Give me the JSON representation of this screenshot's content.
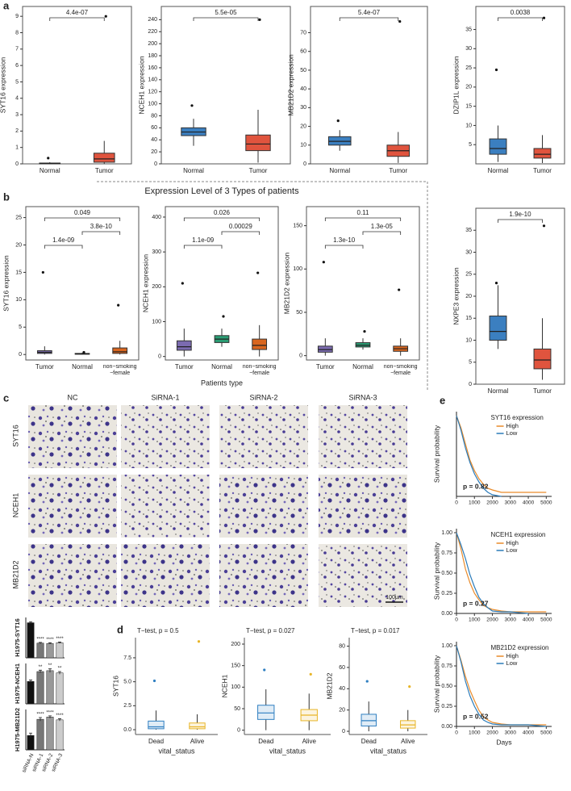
{
  "image_grid": {
    "panel": "c",
    "columns": [
      "NC",
      "SiRNA-1",
      "SiRNA-2",
      "SiRNA-3"
    ],
    "rows": [
      "SYT16",
      "NCEH1",
      "MB21D2"
    ],
    "scale_bar": "100μm"
  },
  "chart_data": [
    {
      "type": "box",
      "panel": "a",
      "ylabel": "SYT16 expression",
      "categories": [
        "Normal",
        "Tumor"
      ],
      "colors": [
        "#3b7fc0",
        "#e0543e"
      ],
      "whisker_low": [
        0,
        0
      ],
      "q1": [
        0,
        0.1
      ],
      "median": [
        0.02,
        0.3
      ],
      "q3": [
        0.05,
        0.65
      ],
      "whisker_high": [
        0.1,
        1.4
      ],
      "max": [
        0.35,
        9.0
      ],
      "ylim": [
        0,
        9.6
      ],
      "yticks": [
        0,
        1,
        2,
        3,
        4,
        5,
        6,
        7,
        8,
        9
      ],
      "comparisons": [
        {
          "from": "Normal",
          "to": "Tumor",
          "label": "4.4e-07"
        }
      ]
    },
    {
      "type": "box",
      "ylabel": "NCEH1 expression",
      "categories": [
        "Normal",
        "Tumor"
      ],
      "colors": [
        "#3b7fc0",
        "#e0543e"
      ],
      "whisker_low": [
        30,
        2
      ],
      "q1": [
        47,
        22
      ],
      "median": [
        53,
        33
      ],
      "q3": [
        60,
        48
      ],
      "whisker_high": [
        75,
        90
      ],
      "max": [
        97,
        240
      ],
      "ylim": [
        0,
        262
      ],
      "yticks": [
        0,
        20,
        40,
        60,
        80,
        100,
        120,
        140,
        160,
        180,
        200,
        220,
        240
      ],
      "comparisons": [
        {
          "from": "Normal",
          "to": "Tumor",
          "label": "5.5e-05"
        }
      ]
    },
    {
      "type": "box",
      "ylabel": "MB21D2 expression",
      "categories": [
        "Normal",
        "Tumor"
      ],
      "colors": [
        "#3b7fc0",
        "#e0543e"
      ],
      "whisker_low": [
        7,
        0.5
      ],
      "q1": [
        10,
        4
      ],
      "median": [
        12,
        7
      ],
      "q3": [
        14.5,
        10
      ],
      "whisker_high": [
        18,
        17
      ],
      "max": [
        23,
        76
      ],
      "ylim": [
        0,
        84
      ],
      "yticks": [
        0,
        10,
        20,
        30,
        40,
        50,
        60,
        70
      ],
      "comparisons": [
        {
          "from": "Normal",
          "to": "Tumor",
          "label": "5.4e-07"
        }
      ]
    },
    {
      "type": "box",
      "ylabel": "DZIP1L expression",
      "categories": [
        "Normal",
        "Tumor"
      ],
      "colors": [
        "#3b7fc0",
        "#e0543e"
      ],
      "whisker_low": [
        0.5,
        0.2
      ],
      "q1": [
        2.5,
        1.5
      ],
      "median": [
        4,
        2.5
      ],
      "q3": [
        6.5,
        4
      ],
      "whisker_high": [
        10,
        7.5
      ],
      "max": [
        24.5,
        38
      ],
      "ylim": [
        0,
        41
      ],
      "yticks": [
        5,
        10,
        15,
        20,
        25,
        30,
        35
      ],
      "comparisons": [
        {
          "from": "Normal",
          "to": "Tumor",
          "label": "0.0038"
        }
      ]
    },
    {
      "type": "box",
      "ylabel": "NXPE3 expression",
      "categories": [
        "Normal",
        "Tumor"
      ],
      "colors": [
        "#3b7fc0",
        "#e0543e"
      ],
      "whisker_low": [
        8,
        1
      ],
      "q1": [
        10,
        3.5
      ],
      "median": [
        12,
        5.5
      ],
      "q3": [
        15.5,
        8
      ],
      "whisker_high": [
        22.5,
        15
      ],
      "max": [
        23,
        36
      ],
      "ylim": [
        0,
        40
      ],
      "yticks": [
        0,
        5,
        10,
        15,
        20,
        25,
        30,
        35
      ],
      "comparisons": [
        {
          "from": "Normal",
          "to": "Tumor",
          "label": "1.9e-10"
        }
      ]
    },
    {
      "type": "box",
      "panel": "b",
      "ylabel": "SYT16 expression",
      "categories": [
        "Tumor",
        "Normal",
        "non−smoking\n−female"
      ],
      "colors": [
        "#7b6bb0",
        "#2a9d74",
        "#d9661f"
      ],
      "whisker_low": [
        0,
        0,
        0
      ],
      "q1": [
        0.2,
        0.05,
        0.2
      ],
      "median": [
        0.4,
        0.1,
        0.5
      ],
      "q3": [
        0.7,
        0.2,
        1.2
      ],
      "whisker_high": [
        1.5,
        0.35,
        2.5
      ],
      "max": [
        15,
        0.4,
        9
      ],
      "ylim": [
        -1,
        27
      ],
      "yticks": [
        0,
        5,
        10,
        15,
        20,
        25
      ],
      "comparisons": [
        {
          "from": "Tumor",
          "to": "non−smoking\n−female",
          "label": "0.049"
        },
        {
          "from": "Normal",
          "to": "non−smoking\n−female",
          "label": "3.8e-10"
        },
        {
          "from": "Tumor",
          "to": "Normal",
          "label": "1.4e-09"
        }
      ]
    },
    {
      "type": "box",
      "title": "Expression Level of 3 Types of patients",
      "xlabel": "Patients type",
      "ylabel": "NCEH1 expression",
      "categories": [
        "Tumor",
        "Normal",
        "non−smoking\n−female"
      ],
      "colors": [
        "#7b6bb0",
        "#2a9d74",
        "#d9661f"
      ],
      "whisker_low": [
        0,
        28,
        0
      ],
      "q1": [
        18,
        40,
        20
      ],
      "median": [
        28,
        50,
        32
      ],
      "q3": [
        45,
        60,
        50
      ],
      "whisker_high": [
        80,
        80,
        90
      ],
      "max": [
        210,
        115,
        240
      ],
      "ylim": [
        -10,
        430
      ],
      "yticks": [
        0,
        100,
        200,
        300,
        400
      ],
      "comparisons": [
        {
          "from": "Tumor",
          "to": "non−smoking\n−female",
          "label": "0.026"
        },
        {
          "from": "Normal",
          "to": "non−smoking\n−female",
          "label": "0.00029"
        },
        {
          "from": "Tumor",
          "to": "Normal",
          "label": "1.1e-09"
        }
      ]
    },
    {
      "type": "box",
      "ylabel": "MB21D2 expression",
      "categories": [
        "Tumor",
        "Normal",
        "non−smoking\n−female"
      ],
      "colors": [
        "#7b6bb0",
        "#2a9d74",
        "#d9661f"
      ],
      "whisker_low": [
        0,
        7,
        0
      ],
      "q1": [
        4,
        10,
        5
      ],
      "median": [
        7,
        12,
        8
      ],
      "q3": [
        11,
        15,
        11
      ],
      "whisker_high": [
        20,
        20,
        20
      ],
      "max": [
        108,
        28,
        76
      ],
      "ylim": [
        -5,
        172
      ],
      "yticks": [
        0,
        50,
        100,
        150
      ],
      "comparisons": [
        {
          "from": "Tumor",
          "to": "non−smoking\n−female",
          "label": "0.11"
        },
        {
          "from": "Normal",
          "to": "non−smoking\n−female",
          "label": "1.3e-05"
        },
        {
          "from": "Tumor",
          "to": "Normal",
          "label": "1.3e-10"
        }
      ]
    },
    {
      "type": "bar",
      "ylabel": "H1975-SYT16",
      "values": [
        100,
        42,
        41,
        43
      ],
      "errors": [
        3,
        2,
        2,
        2
      ],
      "annotations": [
        null,
        "****",
        "****",
        "****"
      ],
      "colors": [
        "#111111",
        "#777777",
        "#999999",
        "#cccccc"
      ],
      "ylim": [
        0,
        115
      ]
    },
    {
      "type": "bar",
      "ylabel": "H1975-NCEH1",
      "values": [
        50,
        72,
        74,
        69
      ],
      "errors": [
        3,
        3,
        4,
        3
      ],
      "annotations": [
        null,
        "**",
        "**",
        "**"
      ],
      "colors": [
        "#111111",
        "#777777",
        "#999999",
        "#cccccc"
      ],
      "ylim": [
        0,
        90
      ]
    },
    {
      "type": "bar",
      "ylabel": "H1975-MB21D2",
      "categories": [
        "siRNA-N",
        "siRNA-1",
        "siRNA-2",
        "siRNA-3"
      ],
      "values": [
        25,
        53,
        57,
        52
      ],
      "errors": [
        4,
        3,
        2,
        2
      ],
      "annotations": [
        null,
        "****",
        "****",
        "****"
      ],
      "colors": [
        "#111111",
        "#777777",
        "#999999",
        "#cccccc"
      ],
      "ylim": [
        0,
        70
      ]
    },
    {
      "type": "box",
      "panel": "d",
      "title": "T−test, p = 0.5",
      "ylabel": "SYT16",
      "xlabel": "vital_status",
      "categories": [
        "Dead",
        "Alive"
      ],
      "colors": [
        "#2f7fc1",
        "#e8b527"
      ],
      "whisker_low": [
        0,
        0
      ],
      "q1": [
        0.1,
        0.1
      ],
      "median": [
        0.3,
        0.3
      ],
      "q3": [
        0.9,
        0.7
      ],
      "whisker_high": [
        2,
        1.6
      ],
      "max": [
        5.1,
        9.2
      ],
      "ylim": [
        -0.5,
        9.6
      ],
      "yticks": [
        {
          "value": 0,
          "label": "0.0"
        },
        2.5,
        {
          "value": 5,
          "label": "5.0"
        },
        7.5
      ]
    },
    {
      "type": "box",
      "title": "T−test, p = 0.027",
      "ylabel": "NCEH1",
      "xlabel": "vital_status",
      "categories": [
        "Dead",
        "Alive"
      ],
      "colors": [
        "#2f7fc1",
        "#e8b527"
      ],
      "whisker_low": [
        0,
        0
      ],
      "q1": [
        25,
        22
      ],
      "median": [
        40,
        35
      ],
      "q3": [
        58,
        48
      ],
      "whisker_high": [
        95,
        85
      ],
      "max": [
        140,
        130
      ],
      "ylim": [
        -10,
        215
      ],
      "yticks": [
        0,
        50,
        100,
        150,
        200
      ]
    },
    {
      "type": "box",
      "title": "T−test, p = 0.017",
      "ylabel": "MB21D2",
      "xlabel": "vital_status",
      "categories": [
        "Dead",
        "Alive"
      ],
      "colors": [
        "#2f7fc1",
        "#e8b527"
      ],
      "whisker_low": [
        0,
        0
      ],
      "q1": [
        5,
        3
      ],
      "median": [
        10,
        6
      ],
      "q3": [
        16,
        10
      ],
      "whisker_high": [
        28,
        20
      ],
      "max": [
        47,
        42
      ],
      "ylim": [
        -3,
        88
      ],
      "yticks": [
        0,
        20,
        40,
        60,
        80
      ]
    },
    {
      "type": "km",
      "panel": "e",
      "title": "SYT16 expression",
      "ylabel": "Survival probability",
      "annotation": "p = 0.82",
      "x": [
        0,
        250,
        500,
        750,
        1000,
        1250,
        1500,
        1750,
        2000,
        2500,
        3000,
        4000,
        5000
      ],
      "series": [
        {
          "name": "High",
          "color": "#e98b2a",
          "values": [
            1,
            0.85,
            0.65,
            0.45,
            0.32,
            0.22,
            0.15,
            0.1,
            0.08,
            0.05,
            0.05,
            0.05,
            0.05
          ]
        },
        {
          "name": "Low",
          "color": "#2b7bb9",
          "values": [
            1,
            0.82,
            0.6,
            0.42,
            0.28,
            0.18,
            0.1,
            0.05,
            0.02,
            0,
            null,
            null,
            null
          ]
        }
      ],
      "xlim": [
        0,
        5300
      ],
      "ylim": [
        0,
        1.05
      ],
      "xticks": [
        0,
        1000,
        2000,
        3000,
        4000,
        5000
      ]
    },
    {
      "type": "km",
      "title": "NCEH1 expression",
      "ylabel": "Survival probability",
      "annotation": "p = 0.27",
      "x": [
        0,
        250,
        500,
        750,
        1000,
        1250,
        1500,
        1750,
        2000,
        2500,
        3000,
        4000,
        5000
      ],
      "series": [
        {
          "name": "High",
          "color": "#e98b2a",
          "values": [
            1,
            0.8,
            0.55,
            0.38,
            0.25,
            0.17,
            0.1,
            0.07,
            0.05,
            0.03,
            0.02,
            0.02,
            0.02
          ]
        },
        {
          "name": "Low",
          "color": "#2b7bb9",
          "values": [
            1,
            0.85,
            0.68,
            0.48,
            0.33,
            0.2,
            0.12,
            0.07,
            0.03,
            0.02,
            0.02,
            0,
            null
          ]
        }
      ],
      "xlim": [
        0,
        5300
      ],
      "ylim": [
        0,
        1.05
      ],
      "xticks": [
        0,
        1000,
        2000,
        3000,
        4000,
        5000
      ],
      "yticks": [
        {
          "value": 0,
          "label": "0.00"
        },
        0.25,
        {
          "value": 0.5,
          "label": "0.50"
        },
        0.75,
        {
          "value": 1,
          "label": "1.00"
        }
      ]
    },
    {
      "type": "km",
      "title": "MB21D2 expression",
      "ylabel": "Survival probability",
      "xlabel": "Days",
      "annotation": "p = 0.52",
      "x": [
        0,
        250,
        500,
        750,
        1000,
        1250,
        1500,
        1750,
        2000,
        2500,
        3000,
        4000,
        5000
      ],
      "series": [
        {
          "name": "High",
          "color": "#e98b2a",
          "values": [
            1,
            0.82,
            0.62,
            0.45,
            0.32,
            0.2,
            0.12,
            0.08,
            0.05,
            0.03,
            0.02,
            0.02,
            0.02
          ]
        },
        {
          "name": "Low",
          "color": "#2b7bb9",
          "values": [
            1,
            0.8,
            0.56,
            0.38,
            0.25,
            0.15,
            0.08,
            0.05,
            0.03,
            0.02,
            0.02,
            0.02,
            0
          ]
        }
      ],
      "xlim": [
        0,
        5300
      ],
      "ylim": [
        0,
        1.05
      ],
      "xticks": [
        0,
        1000,
        2000,
        3000,
        4000,
        5000
      ],
      "yticks": [
        {
          "value": 0,
          "label": "0.00"
        },
        0.25,
        {
          "value": 0.5,
          "label": "0.50"
        },
        0.75,
        {
          "value": 1,
          "label": "1.00"
        }
      ]
    }
  ]
}
